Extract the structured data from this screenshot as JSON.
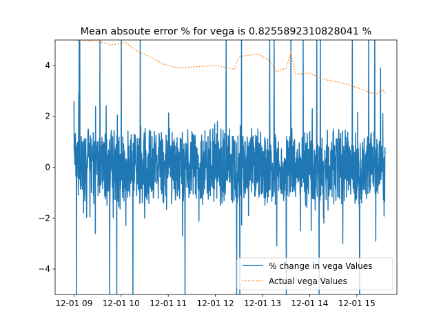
{
  "chart_data": {
    "type": "line",
    "title": "Mean absoute error % for vega is 0.8255892310828041 %",
    "xlabel": "",
    "ylabel": "",
    "x_ticks": [
      "12-01 09",
      "12-01 10",
      "12-01 11",
      "12-01 12",
      "12-01 13",
      "12-01 14",
      "12-01 15"
    ],
    "y_ticks": [
      -4,
      -2,
      0,
      2,
      4
    ],
    "xlim_hours": [
      8.6,
      15.85
    ],
    "ylim": [
      -5,
      5
    ],
    "grid": false,
    "legend_position": "lower-right",
    "series": [
      {
        "name": "% change in vega Values",
        "style": "solid",
        "color": "#1f77b4",
        "sampled_points": [
          [
            9.0,
            2.6
          ],
          [
            9.05,
            -5.0
          ],
          [
            9.1,
            2.9
          ],
          [
            9.2,
            -1.8
          ],
          [
            9.3,
            1.5
          ],
          [
            9.45,
            -2.6
          ],
          [
            9.55,
            5.0
          ],
          [
            9.7,
            -1.5
          ],
          [
            9.85,
            1.2
          ],
          [
            10.0,
            5.0
          ],
          [
            10.1,
            -2.3
          ],
          [
            10.3,
            1.0
          ],
          [
            10.5,
            -2.0
          ],
          [
            10.7,
            1.4
          ],
          [
            10.9,
            -1.4
          ],
          [
            11.1,
            1.0
          ],
          [
            11.3,
            -2.7
          ],
          [
            11.5,
            1.4
          ],
          [
            11.7,
            -1.2
          ],
          [
            11.9,
            1.0
          ],
          [
            12.1,
            -1.5
          ],
          [
            12.3,
            1.5
          ],
          [
            12.45,
            -5.0
          ],
          [
            12.55,
            5.0
          ],
          [
            12.7,
            -1.9
          ],
          [
            12.9,
            1.5
          ],
          [
            13.05,
            -1.5
          ],
          [
            13.15,
            5.0
          ],
          [
            13.3,
            -3.1
          ],
          [
            13.5,
            -5.0
          ],
          [
            13.6,
            5.0
          ],
          [
            13.8,
            -2.5
          ],
          [
            14.0,
            1.4
          ],
          [
            14.15,
            5.0
          ],
          [
            14.3,
            -2.2
          ],
          [
            14.5,
            1.5
          ],
          [
            14.7,
            -3.0
          ],
          [
            14.9,
            5.0
          ],
          [
            15.1,
            -1.4
          ],
          [
            15.25,
            5.0
          ],
          [
            15.4,
            -2.9
          ],
          [
            15.5,
            3.9
          ],
          [
            15.6,
            0.5
          ]
        ]
      },
      {
        "name": "Actual vega Values",
        "style": "dotted",
        "color": "#ff7f0e",
        "points": [
          [
            9.0,
            5.0
          ],
          [
            9.5,
            4.95
          ],
          [
            9.8,
            4.8
          ],
          [
            10.1,
            4.9
          ],
          [
            10.3,
            4.6
          ],
          [
            10.6,
            4.35
          ],
          [
            10.9,
            4.05
          ],
          [
            11.2,
            3.9
          ],
          [
            11.6,
            3.95
          ],
          [
            12.0,
            4.0
          ],
          [
            12.4,
            3.85
          ],
          [
            12.5,
            4.35
          ],
          [
            12.7,
            4.4
          ],
          [
            12.9,
            4.45
          ],
          [
            13.15,
            4.2
          ],
          [
            13.3,
            3.75
          ],
          [
            13.5,
            3.9
          ],
          [
            13.6,
            4.5
          ],
          [
            13.7,
            3.65
          ],
          [
            14.0,
            3.7
          ],
          [
            14.3,
            3.45
          ],
          [
            14.6,
            3.35
          ],
          [
            14.9,
            3.2
          ],
          [
            15.2,
            3.0
          ],
          [
            15.4,
            2.85
          ],
          [
            15.55,
            3.05
          ],
          [
            15.6,
            2.9
          ]
        ]
      }
    ]
  }
}
